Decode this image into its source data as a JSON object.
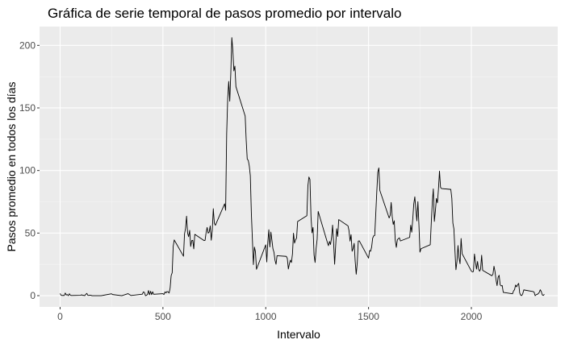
{
  "chart_data": {
    "type": "line",
    "title": "Gráfica de serie temporal de pasos promedio por intervalo",
    "xlabel": "Intervalo",
    "ylabel": "Pasos promedio en todos los días",
    "xlim": [
      -100,
      2420
    ],
    "ylim": [
      -9,
      215
    ],
    "x_ticks": [
      0,
      500,
      1000,
      1500,
      2000
    ],
    "y_ticks": [
      0,
      50,
      100,
      150,
      200
    ],
    "x_tick_labels": [
      "0",
      "500",
      "1000",
      "1500",
      "2000"
    ],
    "y_tick_labels": [
      "0",
      "50",
      "100",
      "150",
      "200"
    ],
    "grid": true,
    "colors": {
      "panel": "#ebebeb",
      "grid_major": "#ffffff",
      "grid_minor": "#f5f5f5",
      "line": "#000000"
    },
    "series": [
      {
        "points": [
          [
            0,
            1.7
          ],
          [
            5,
            0.3
          ],
          [
            10,
            0.1
          ],
          [
            15,
            0.2
          ],
          [
            20,
            0.1
          ],
          [
            25,
            2.1
          ],
          [
            30,
            0.5
          ],
          [
            35,
            0.9
          ],
          [
            40,
            0.0
          ],
          [
            45,
            1.5
          ],
          [
            50,
            0.3
          ],
          [
            55,
            0.1
          ],
          [
            100,
            0.3
          ],
          [
            105,
            0.7
          ],
          [
            110,
            0.2
          ],
          [
            115,
            0.3
          ],
          [
            120,
            0.0
          ],
          [
            125,
            1.1
          ],
          [
            130,
            1.8
          ],
          [
            135,
            0.2
          ],
          [
            140,
            0.2
          ],
          [
            145,
            0.4
          ],
          [
            150,
            0.3
          ],
          [
            155,
            0.0
          ],
          [
            200,
            0.0
          ],
          [
            250,
            1.5
          ],
          [
            255,
            0.9
          ],
          [
            300,
            0.0
          ],
          [
            330,
            1.6
          ],
          [
            345,
            0.1
          ],
          [
            400,
            1.2
          ],
          [
            405,
            3.0
          ],
          [
            410,
            2.6
          ],
          [
            415,
            0.0
          ],
          [
            420,
            0.3
          ],
          [
            425,
            0.9
          ],
          [
            430,
            4.1
          ],
          [
            435,
            0.7
          ],
          [
            440,
            3.5
          ],
          [
            445,
            0.8
          ],
          [
            450,
            3.1
          ],
          [
            455,
            1.1
          ],
          [
            500,
            1.6
          ],
          [
            505,
            0.9
          ],
          [
            510,
            3.0
          ],
          [
            515,
            2.2
          ],
          [
            520,
            3.3
          ],
          [
            525,
            3.0
          ],
          [
            530,
            2.1
          ],
          [
            535,
            6.1
          ],
          [
            540,
            16.0
          ],
          [
            545,
            18.3
          ],
          [
            550,
            39.5
          ],
          [
            555,
            44.5
          ],
          [
            600,
            31.5
          ],
          [
            605,
            49.3
          ],
          [
            610,
            53.8
          ],
          [
            615,
            63.5
          ],
          [
            620,
            50.0
          ],
          [
            625,
            47.1
          ],
          [
            630,
            52.2
          ],
          [
            635,
            39.3
          ],
          [
            640,
            44.0
          ],
          [
            645,
            44.2
          ],
          [
            650,
            37.4
          ],
          [
            655,
            49.0
          ],
          [
            700,
            44.0
          ],
          [
            705,
            44.2
          ],
          [
            710,
            50.5
          ],
          [
            715,
            54.5
          ],
          [
            720,
            49.9
          ],
          [
            725,
            50.8
          ],
          [
            730,
            55.7
          ],
          [
            735,
            44.3
          ],
          [
            740,
            52.3
          ],
          [
            745,
            69.5
          ],
          [
            750,
            57.8
          ],
          [
            755,
            56.2
          ],
          [
            800,
            73.4
          ],
          [
            805,
            68.2
          ],
          [
            810,
            129.4
          ],
          [
            815,
            157.5
          ],
          [
            820,
            171.2
          ],
          [
            825,
            155.4
          ],
          [
            830,
            177.3
          ],
          [
            835,
            206.2
          ],
          [
            840,
            195.9
          ],
          [
            845,
            179.6
          ],
          [
            850,
            183.4
          ],
          [
            855,
            167.0
          ],
          [
            900,
            143.5
          ],
          [
            905,
            124.0
          ],
          [
            910,
            109.1
          ],
          [
            915,
            108.1
          ],
          [
            920,
            103.7
          ],
          [
            925,
            95.9
          ],
          [
            930,
            66.2
          ],
          [
            935,
            45.2
          ],
          [
            940,
            24.8
          ],
          [
            945,
            38.8
          ],
          [
            950,
            35.0
          ],
          [
            955,
            21.1
          ],
          [
            1000,
            40.6
          ],
          [
            1005,
            26.9
          ],
          [
            1010,
            42.4
          ],
          [
            1015,
            52.7
          ],
          [
            1020,
            38.9
          ],
          [
            1025,
            50.8
          ],
          [
            1030,
            44.3
          ],
          [
            1035,
            37.4
          ],
          [
            1040,
            34.7
          ],
          [
            1045,
            28.3
          ],
          [
            1050,
            25.1
          ],
          [
            1055,
            31.9
          ],
          [
            1100,
            31.4
          ],
          [
            1105,
            29.7
          ],
          [
            1110,
            21.3
          ],
          [
            1115,
            25.5
          ],
          [
            1120,
            28.4
          ],
          [
            1125,
            26.5
          ],
          [
            1130,
            33.4
          ],
          [
            1135,
            49.9
          ],
          [
            1140,
            42.0
          ],
          [
            1145,
            44.6
          ],
          [
            1150,
            46.0
          ],
          [
            1155,
            59.2
          ],
          [
            1200,
            63.9
          ],
          [
            1205,
            87.7
          ],
          [
            1210,
            94.8
          ],
          [
            1215,
            92.8
          ],
          [
            1220,
            63.4
          ],
          [
            1225,
            50.2
          ],
          [
            1230,
            54.5
          ],
          [
            1235,
            32.4
          ],
          [
            1240,
            26.5
          ],
          [
            1245,
            37.7
          ],
          [
            1250,
            45.1
          ],
          [
            1255,
            67.3
          ],
          [
            1300,
            42.3
          ],
          [
            1305,
            39.9
          ],
          [
            1310,
            43.3
          ],
          [
            1315,
            40.9
          ],
          [
            1320,
            46.2
          ],
          [
            1325,
            56.4
          ],
          [
            1330,
            42.8
          ],
          [
            1335,
            25.1
          ],
          [
            1340,
            39.9
          ],
          [
            1345,
            53.5
          ],
          [
            1350,
            47.3
          ],
          [
            1355,
            60.8
          ],
          [
            1400,
            55.8
          ],
          [
            1405,
            51.9
          ],
          [
            1410,
            43.6
          ],
          [
            1415,
            48.7
          ],
          [
            1420,
            35.5
          ],
          [
            1425,
            37.5
          ],
          [
            1430,
            41.8
          ],
          [
            1435,
            27.5
          ],
          [
            1440,
            17.1
          ],
          [
            1445,
            26.1
          ],
          [
            1450,
            43.6
          ],
          [
            1455,
            43.8
          ],
          [
            1500,
            30.0
          ],
          [
            1505,
            36.1
          ],
          [
            1510,
            35.5
          ],
          [
            1515,
            38.8
          ],
          [
            1520,
            45.9
          ],
          [
            1525,
            47.8
          ],
          [
            1530,
            48.1
          ],
          [
            1535,
            65.3
          ],
          [
            1540,
            82.9
          ],
          [
            1545,
            98.7
          ],
          [
            1550,
            102.1
          ],
          [
            1555,
            84.0
          ],
          [
            1600,
            62.1
          ],
          [
            1605,
            64.1
          ],
          [
            1610,
            74.5
          ],
          [
            1615,
            63.2
          ],
          [
            1620,
            56.9
          ],
          [
            1625,
            59.8
          ],
          [
            1630,
            43.9
          ],
          [
            1635,
            38.6
          ],
          [
            1640,
            44.7
          ],
          [
            1645,
            45.5
          ],
          [
            1650,
            46.2
          ],
          [
            1655,
            43.7
          ],
          [
            1700,
            46.6
          ],
          [
            1705,
            56.3
          ],
          [
            1710,
            50.7
          ],
          [
            1715,
            61.2
          ],
          [
            1720,
            73.4
          ],
          [
            1725,
            79.0
          ],
          [
            1730,
            68.9
          ],
          [
            1735,
            59.7
          ],
          [
            1740,
            75.1
          ],
          [
            1745,
            56.5
          ],
          [
            1750,
            34.8
          ],
          [
            1755,
            37.5
          ],
          [
            1800,
            40.7
          ],
          [
            1805,
            58.0
          ],
          [
            1810,
            74.7
          ],
          [
            1815,
            85.3
          ],
          [
            1820,
            59.3
          ],
          [
            1825,
            67.8
          ],
          [
            1830,
            77.7
          ],
          [
            1835,
            74.2
          ],
          [
            1840,
            85.3
          ],
          [
            1845,
            99.5
          ],
          [
            1850,
            86.6
          ],
          [
            1855,
            85.6
          ],
          [
            1900,
            84.9
          ],
          [
            1905,
            77.8
          ],
          [
            1910,
            58.0
          ],
          [
            1915,
            53.4
          ],
          [
            1920,
            36.3
          ],
          [
            1925,
            20.7
          ],
          [
            1930,
            27.4
          ],
          [
            1935,
            40.0
          ],
          [
            1940,
            30.2
          ],
          [
            1945,
            25.5
          ],
          [
            1950,
            45.7
          ],
          [
            1955,
            33.5
          ],
          [
            2000,
            19.6
          ],
          [
            2005,
            19.0
          ],
          [
            2010,
            19.3
          ],
          [
            2015,
            33.3
          ],
          [
            2020,
            26.8
          ],
          [
            2025,
            21.2
          ],
          [
            2030,
            27.3
          ],
          [
            2035,
            21.3
          ],
          [
            2040,
            19.5
          ],
          [
            2045,
            21.3
          ],
          [
            2050,
            32.3
          ],
          [
            2055,
            20.2
          ],
          [
            2100,
            15.9
          ],
          [
            2105,
            17.2
          ],
          [
            2110,
            23.5
          ],
          [
            2115,
            19.2
          ],
          [
            2120,
            12.5
          ],
          [
            2125,
            8.0
          ],
          [
            2130,
            14.7
          ],
          [
            2135,
            16.3
          ],
          [
            2140,
            8.7
          ],
          [
            2145,
            7.8
          ],
          [
            2150,
            8.1
          ],
          [
            2155,
            2.6
          ],
          [
            2200,
            1.5
          ],
          [
            2205,
            3.7
          ],
          [
            2210,
            4.8
          ],
          [
            2215,
            8.5
          ],
          [
            2220,
            7.1
          ],
          [
            2225,
            8.7
          ],
          [
            2230,
            9.8
          ],
          [
            2235,
            2.2
          ],
          [
            2240,
            0.3
          ],
          [
            2245,
            0.1
          ],
          [
            2250,
            1.6
          ],
          [
            2255,
            4.6
          ],
          [
            2300,
            3.3
          ],
          [
            2305,
            2.8
          ],
          [
            2310,
            0.0
          ],
          [
            2315,
            0.8
          ],
          [
            2320,
            1.0
          ],
          [
            2325,
            1.6
          ],
          [
            2330,
            2.6
          ],
          [
            2335,
            4.7
          ],
          [
            2340,
            3.3
          ],
          [
            2345,
            0.6
          ],
          [
            2350,
            0.2
          ],
          [
            2355,
            1.1
          ]
        ]
      }
    ]
  }
}
